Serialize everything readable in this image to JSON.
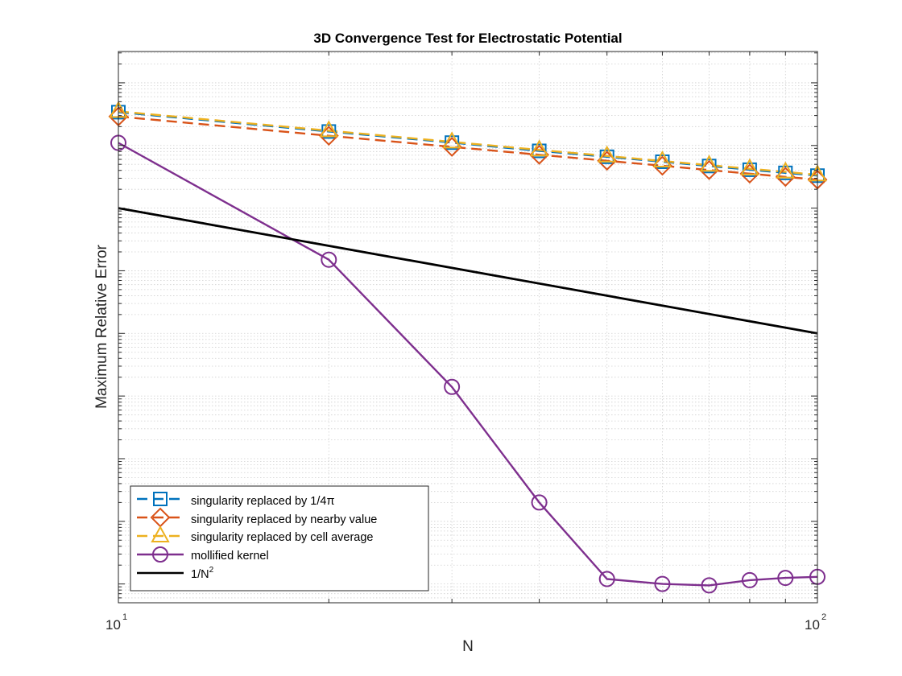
{
  "chart_data": {
    "type": "line",
    "title": "3D Convergence Test for Electrostatic Potential",
    "xlabel": "N",
    "ylabel": "Maximum Relative Error",
    "xscale": "log",
    "yscale": "log",
    "xlim": [
      10,
      100
    ],
    "ylim_log10": [
      -8.3,
      0.5
    ],
    "grid": "minor-dotted",
    "legend_position": "bottom-left",
    "x": [
      10,
      20,
      30,
      40,
      50,
      60,
      70,
      80,
      90,
      100
    ],
    "x_ticks": [
      {
        "base": "10",
        "exp": "1"
      },
      {
        "base": "10",
        "exp": "2"
      }
    ],
    "series": [
      {
        "name": "singularity replaced by 1/4π",
        "color": "#0072BD",
        "dash": "dashed",
        "marker": "square",
        "x": [
          10,
          20,
          30,
          40,
          50,
          60,
          70,
          80,
          90,
          100
        ],
        "values": [
          0.34,
          0.167,
          0.111,
          0.082,
          0.066,
          0.055,
          0.047,
          0.041,
          0.0365,
          0.033
        ]
      },
      {
        "name": "singularity replaced by nearby value",
        "color": "#D95319",
        "dash": "dashed",
        "marker": "diamond",
        "x": [
          10,
          20,
          30,
          40,
          50,
          60,
          70,
          80,
          90,
          100
        ],
        "values": [
          0.29,
          0.143,
          0.095,
          0.071,
          0.057,
          0.0475,
          0.0405,
          0.0355,
          0.0315,
          0.0285
        ]
      },
      {
        "name": "singularity replaced by cell average",
        "color": "#EDB120",
        "dash": "dashed",
        "marker": "triangle",
        "x": [
          10,
          20,
          30,
          40,
          50,
          60,
          70,
          80,
          90,
          100
        ],
        "values": [
          0.35,
          0.172,
          0.114,
          0.085,
          0.068,
          0.0565,
          0.0485,
          0.0425,
          0.0378,
          0.034
        ]
      },
      {
        "name": "mollified kernel",
        "color": "#7E2F8E",
        "dash": "solid",
        "marker": "circle",
        "x": [
          10,
          20,
          30,
          40,
          50,
          60,
          70,
          80,
          90,
          100
        ],
        "values": [
          0.11,
          0.0015,
          1.4e-05,
          2e-07,
          1.2e-08,
          1e-08,
          9.5e-09,
          1.15e-08,
          1.25e-08,
          1.3e-08
        ]
      },
      {
        "name": "1/N",
        "name_sup": "2",
        "color": "#000000",
        "dash": "solid",
        "marker": "none",
        "x": [
          10,
          100
        ],
        "values": [
          0.01,
          0.0001
        ]
      }
    ]
  }
}
